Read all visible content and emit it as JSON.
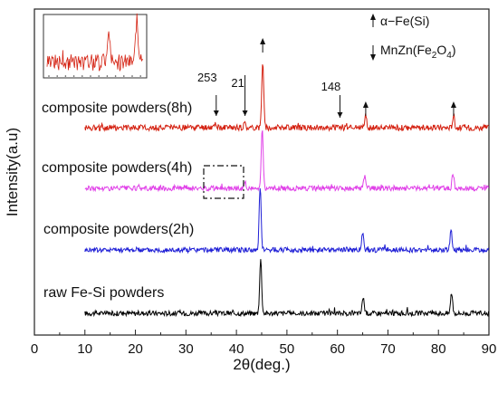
{
  "chart_data": {
    "type": "line",
    "title": "",
    "xlabel": "2θ(deg.)",
    "ylabel": "Intensity(a.u)",
    "xlim": [
      0,
      90
    ],
    "xticks": [
      0,
      10,
      20,
      30,
      40,
      50,
      60,
      70,
      80,
      90
    ],
    "grid": false,
    "legend": {
      "placement": "top-right",
      "entries": [
        {
          "marker": "up-arrow",
          "label": "α−Fe(Si)"
        },
        {
          "marker": "down-arrow",
          "label": "MnZn(Fe2O4)"
        }
      ]
    },
    "series": [
      {
        "name": "raw Fe-Si powders",
        "color": "#000000",
        "x_range": [
          10,
          90
        ],
        "baseline": 0,
        "noise": 0.6,
        "peaks": [
          {
            "x": 44.8,
            "height": 13
          },
          {
            "x": 65.1,
            "height": 4
          },
          {
            "x": 82.6,
            "height": 5
          }
        ]
      },
      {
        "name": "composite powders(2h)",
        "color": "#1f1fd6",
        "x_range": [
          10,
          90
        ],
        "baseline": 0,
        "noise": 0.6,
        "peaks": [
          {
            "x": 44.7,
            "height": 15
          },
          {
            "x": 65.0,
            "height": 4
          },
          {
            "x": 82.5,
            "height": 5
          }
        ]
      },
      {
        "name": "composite powders(4h)",
        "color": "#e040e8",
        "x_range": [
          10,
          90
        ],
        "baseline": 0,
        "noise": 0.6,
        "peaks": [
          {
            "x": 45.1,
            "height": 14
          },
          {
            "x": 65.4,
            "height": 3
          },
          {
            "x": 82.9,
            "height": 3.5
          },
          {
            "x": 41.7,
            "height": 1.5
          }
        ]
      },
      {
        "name": "composite powders(8h)",
        "color": "#d42010",
        "x_range": [
          10,
          90
        ],
        "baseline": 0,
        "noise": 0.7,
        "peaks": [
          {
            "x": 45.2,
            "height": 16
          },
          {
            "x": 65.6,
            "height": 3
          },
          {
            "x": 83.0,
            "height": 3
          },
          {
            "x": 41.7,
            "height": 1
          },
          {
            "x": 35.8,
            "height": 1
          }
        ]
      }
    ],
    "annotations": [
      {
        "text": "253",
        "x": 36.0,
        "series": "composite powders(8h)",
        "marker": "down-arrow"
      },
      {
        "text": "21",
        "x": 41.7,
        "series": "composite powders(8h)",
        "marker": "down-arrow"
      },
      {
        "text": "148",
        "x": 60.5,
        "series": "composite powders(8h)",
        "marker": "down-arrow"
      }
    ],
    "alpha_fe_markers": [
      {
        "x": 45.2,
        "series": "composite powders(8h)"
      },
      {
        "x": 65.6,
        "series": "composite powders(8h)"
      },
      {
        "x": 83.0,
        "series": "composite powders(8h)"
      }
    ],
    "zoom_box": {
      "series": "composite powders(4h)",
      "x_range": [
        35.5,
        43.2
      ]
    },
    "inset": {
      "placement": "top-left",
      "series": "composite powders(8h)"
    }
  }
}
